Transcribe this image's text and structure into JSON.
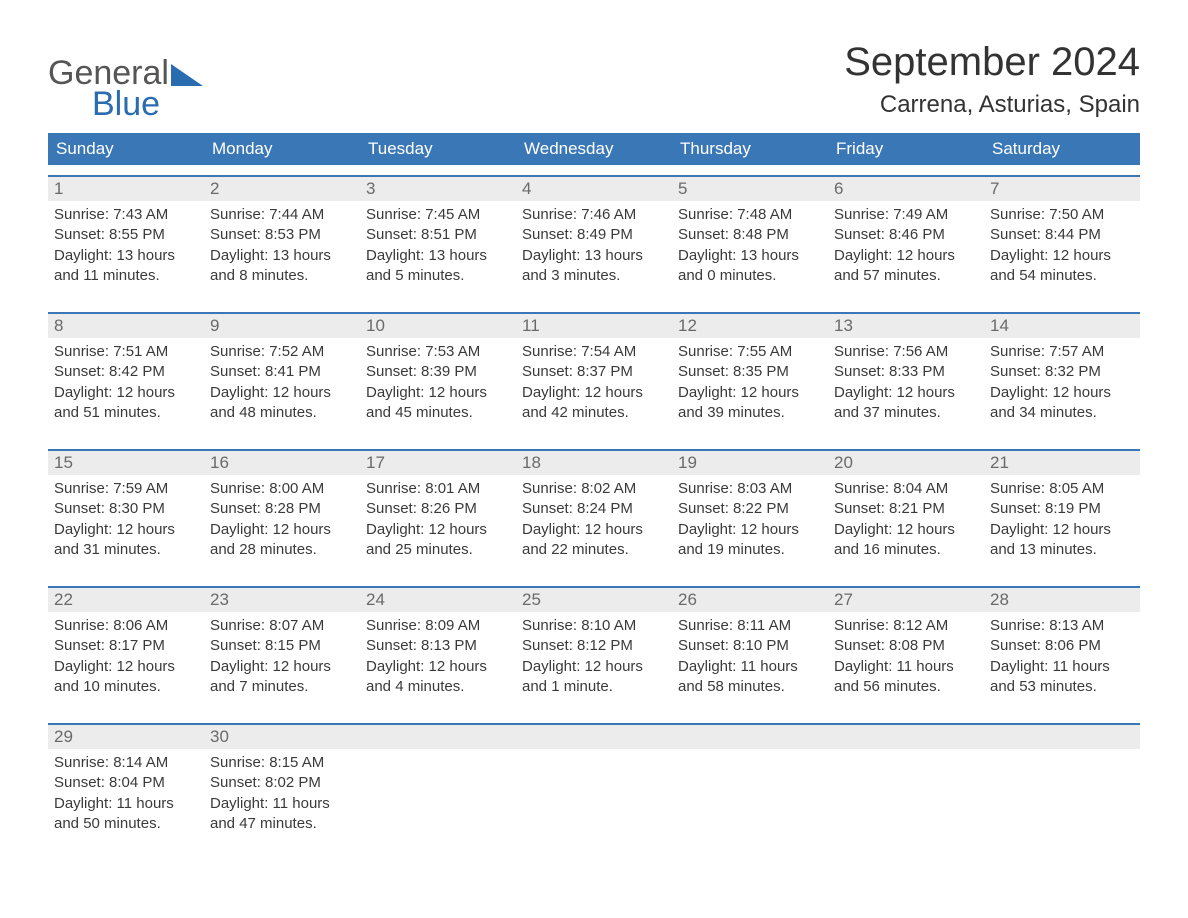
{
  "logo": {
    "line1": "General",
    "line2": "Blue"
  },
  "title": "September 2024",
  "location": "Carrena, Asturias, Spain",
  "dow": [
    "Sunday",
    "Monday",
    "Tuesday",
    "Wednesday",
    "Thursday",
    "Friday",
    "Saturday"
  ],
  "colors": {
    "header_bg": "#3a77b7",
    "week_rule": "#3a77b7",
    "daynum_bg": "#ececec",
    "text": "#3a3a3a",
    "logo_gray": "#555555",
    "logo_blue": "#2a6cb0"
  },
  "weeks": [
    [
      {
        "n": "1",
        "sr": "7:43 AM",
        "ss": "8:55 PM",
        "dl": "13 hours and 11 minutes."
      },
      {
        "n": "2",
        "sr": "7:44 AM",
        "ss": "8:53 PM",
        "dl": "13 hours and 8 minutes."
      },
      {
        "n": "3",
        "sr": "7:45 AM",
        "ss": "8:51 PM",
        "dl": "13 hours and 5 minutes."
      },
      {
        "n": "4",
        "sr": "7:46 AM",
        "ss": "8:49 PM",
        "dl": "13 hours and 3 minutes."
      },
      {
        "n": "5",
        "sr": "7:48 AM",
        "ss": "8:48 PM",
        "dl": "13 hours and 0 minutes."
      },
      {
        "n": "6",
        "sr": "7:49 AM",
        "ss": "8:46 PM",
        "dl": "12 hours and 57 minutes."
      },
      {
        "n": "7",
        "sr": "7:50 AM",
        "ss": "8:44 PM",
        "dl": "12 hours and 54 minutes."
      }
    ],
    [
      {
        "n": "8",
        "sr": "7:51 AM",
        "ss": "8:42 PM",
        "dl": "12 hours and 51 minutes."
      },
      {
        "n": "9",
        "sr": "7:52 AM",
        "ss": "8:41 PM",
        "dl": "12 hours and 48 minutes."
      },
      {
        "n": "10",
        "sr": "7:53 AM",
        "ss": "8:39 PM",
        "dl": "12 hours and 45 minutes."
      },
      {
        "n": "11",
        "sr": "7:54 AM",
        "ss": "8:37 PM",
        "dl": "12 hours and 42 minutes."
      },
      {
        "n": "12",
        "sr": "7:55 AM",
        "ss": "8:35 PM",
        "dl": "12 hours and 39 minutes."
      },
      {
        "n": "13",
        "sr": "7:56 AM",
        "ss": "8:33 PM",
        "dl": "12 hours and 37 minutes."
      },
      {
        "n": "14",
        "sr": "7:57 AM",
        "ss": "8:32 PM",
        "dl": "12 hours and 34 minutes."
      }
    ],
    [
      {
        "n": "15",
        "sr": "7:59 AM",
        "ss": "8:30 PM",
        "dl": "12 hours and 31 minutes."
      },
      {
        "n": "16",
        "sr": "8:00 AM",
        "ss": "8:28 PM",
        "dl": "12 hours and 28 minutes."
      },
      {
        "n": "17",
        "sr": "8:01 AM",
        "ss": "8:26 PM",
        "dl": "12 hours and 25 minutes."
      },
      {
        "n": "18",
        "sr": "8:02 AM",
        "ss": "8:24 PM",
        "dl": "12 hours and 22 minutes."
      },
      {
        "n": "19",
        "sr": "8:03 AM",
        "ss": "8:22 PM",
        "dl": "12 hours and 19 minutes."
      },
      {
        "n": "20",
        "sr": "8:04 AM",
        "ss": "8:21 PM",
        "dl": "12 hours and 16 minutes."
      },
      {
        "n": "21",
        "sr": "8:05 AM",
        "ss": "8:19 PM",
        "dl": "12 hours and 13 minutes."
      }
    ],
    [
      {
        "n": "22",
        "sr": "8:06 AM",
        "ss": "8:17 PM",
        "dl": "12 hours and 10 minutes."
      },
      {
        "n": "23",
        "sr": "8:07 AM",
        "ss": "8:15 PM",
        "dl": "12 hours and 7 minutes."
      },
      {
        "n": "24",
        "sr": "8:09 AM",
        "ss": "8:13 PM",
        "dl": "12 hours and 4 minutes."
      },
      {
        "n": "25",
        "sr": "8:10 AM",
        "ss": "8:12 PM",
        "dl": "12 hours and 1 minute."
      },
      {
        "n": "26",
        "sr": "8:11 AM",
        "ss": "8:10 PM",
        "dl": "11 hours and 58 minutes."
      },
      {
        "n": "27",
        "sr": "8:12 AM",
        "ss": "8:08 PM",
        "dl": "11 hours and 56 minutes."
      },
      {
        "n": "28",
        "sr": "8:13 AM",
        "ss": "8:06 PM",
        "dl": "11 hours and 53 minutes."
      }
    ],
    [
      {
        "n": "29",
        "sr": "8:14 AM",
        "ss": "8:04 PM",
        "dl": "11 hours and 50 minutes."
      },
      {
        "n": "30",
        "sr": "8:15 AM",
        "ss": "8:02 PM",
        "dl": "11 hours and 47 minutes."
      },
      null,
      null,
      null,
      null,
      null
    ]
  ],
  "labels": {
    "sunrise_prefix": "Sunrise: ",
    "sunset_prefix": "Sunset: ",
    "daylight_prefix": "Daylight: "
  }
}
